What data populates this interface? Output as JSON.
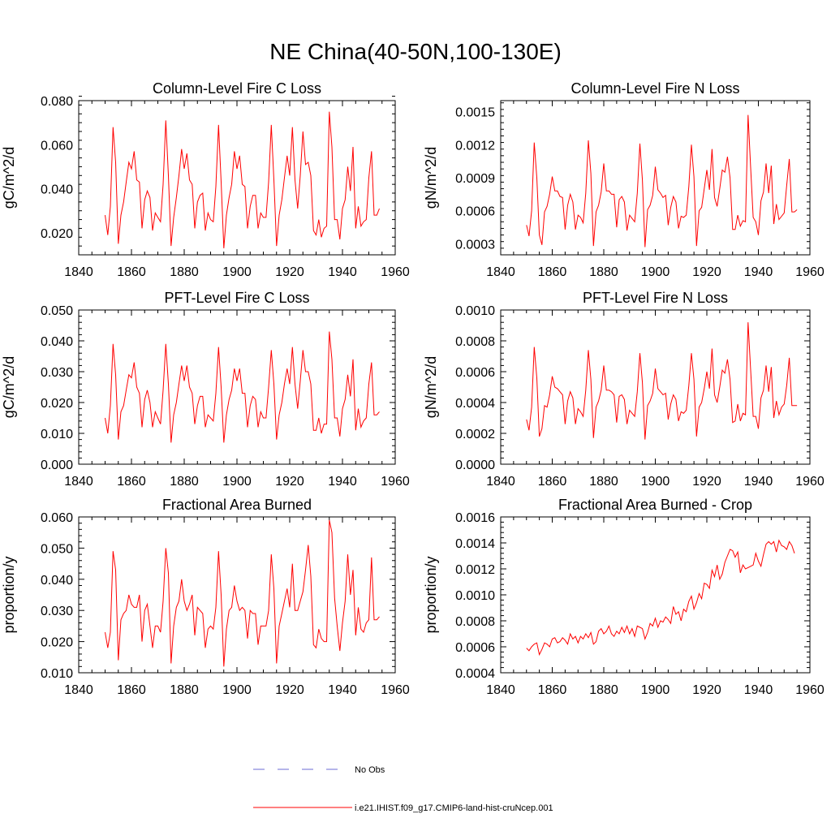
{
  "figure": {
    "title": "NE China(40-50N,100-130E)",
    "legend": [
      {
        "label": "No Obs",
        "color": "#6b6bd6",
        "style": "dashed"
      },
      {
        "label": "i.e21.IHIST.f09_g17.CMIP6-land-hist-cruNcep.001",
        "color": "#ff0000",
        "style": "solid"
      }
    ]
  },
  "chart_data": [
    {
      "type": "line",
      "title": "Column-Level Fire C Loss",
      "ylabel": "gC/m^2/d",
      "xlim": [
        1840,
        1960
      ],
      "ylim": [
        0.01,
        0.08
      ],
      "xticks": [
        1840,
        1860,
        1880,
        1900,
        1920,
        1940,
        1960
      ],
      "yticks": [
        0.02,
        0.04,
        0.06,
        0.08
      ],
      "yticklabels": [
        "0.020",
        "0.040",
        "0.060",
        "0.080"
      ],
      "x_start": 1850,
      "series": [
        {
          "color": "#ff0000",
          "values": [
            0.028,
            0.019,
            0.032,
            0.068,
            0.052,
            0.015,
            0.028,
            0.034,
            0.043,
            0.052,
            0.049,
            0.057,
            0.044,
            0.043,
            0.022,
            0.035,
            0.039,
            0.036,
            0.021,
            0.029,
            0.027,
            0.025,
            0.042,
            0.071,
            0.046,
            0.014,
            0.027,
            0.036,
            0.046,
            0.058,
            0.049,
            0.056,
            0.044,
            0.042,
            0.022,
            0.034,
            0.037,
            0.038,
            0.021,
            0.029,
            0.026,
            0.025,
            0.041,
            0.069,
            0.043,
            0.013,
            0.028,
            0.036,
            0.042,
            0.057,
            0.049,
            0.055,
            0.042,
            0.041,
            0.022,
            0.032,
            0.037,
            0.037,
            0.022,
            0.029,
            0.027,
            0.027,
            0.043,
            0.069,
            0.044,
            0.014,
            0.028,
            0.035,
            0.045,
            0.055,
            0.046,
            0.068,
            0.044,
            0.031,
            0.046,
            0.066,
            0.051,
            0.052,
            0.046,
            0.021,
            0.019,
            0.026,
            0.018,
            0.022,
            0.023,
            0.075,
            0.059,
            0.026,
            0.026,
            0.017,
            0.031,
            0.035,
            0.05,
            0.039,
            0.059,
            0.022,
            0.032,
            0.023,
            0.025,
            0.026,
            0.045,
            0.057,
            0.028,
            0.028,
            0.031
          ]
        }
      ]
    },
    {
      "type": "line",
      "title": "Column-Level Fire N Loss",
      "ylabel": "gN/m^2/d",
      "xlim": [
        1840,
        1960
      ],
      "ylim": [
        0.0002,
        0.0016
      ],
      "xticks": [
        1840,
        1860,
        1880,
        1900,
        1920,
        1940,
        1960
      ],
      "yticks": [
        0.0003,
        0.0006,
        0.0009,
        0.0012,
        0.0015
      ],
      "yticklabels": [
        "0.0003",
        "0.0006",
        "0.0009",
        "0.0012",
        "0.0015"
      ],
      "x_start": 1850,
      "series": [
        {
          "color": "#ff0000",
          "values": [
            0.00047,
            0.00037,
            0.0006,
            0.00122,
            0.0009,
            0.00038,
            0.00029,
            0.00059,
            0.00064,
            0.00075,
            0.00091,
            0.00078,
            0.00078,
            0.00073,
            0.00072,
            0.00043,
            0.00065,
            0.00075,
            0.00068,
            0.00043,
            0.00056,
            0.00054,
            0.00049,
            0.00076,
            0.00124,
            0.00094,
            0.00028,
            0.00059,
            0.00065,
            0.00077,
            0.00103,
            0.00078,
            0.00078,
            0.00075,
            0.00075,
            0.00045,
            0.0007,
            0.00073,
            0.00068,
            0.00042,
            0.00056,
            0.00053,
            0.0005,
            0.00076,
            0.00121,
            0.00088,
            0.00027,
            0.00061,
            0.00065,
            0.00074,
            0.001,
            0.00079,
            0.00076,
            0.00072,
            0.00074,
            0.00047,
            0.00063,
            0.00073,
            0.00068,
            0.00044,
            0.00055,
            0.00054,
            0.00056,
            0.00082,
            0.0012,
            0.00091,
            0.00028,
            0.0006,
            0.00063,
            0.0008,
            0.00097,
            0.00079,
            0.00116,
            0.00072,
            0.00064,
            0.0008,
            0.00097,
            0.00095,
            0.00109,
            0.0009,
            0.00043,
            0.00043,
            0.00056,
            0.00046,
            0.00051,
            0.0005,
            0.00147,
            0.00099,
            0.00054,
            0.0005,
            0.00038,
            0.00069,
            0.00077,
            0.00103,
            0.00076,
            0.00101,
            0.00048,
            0.00066,
            0.00052,
            0.00055,
            0.00058,
            0.00083,
            0.00107,
            0.00059,
            0.00059,
            0.00061
          ]
        }
      ]
    },
    {
      "type": "line",
      "title": "PFT-Level Fire C Loss",
      "ylabel": "gC/m^2/d",
      "xlim": [
        1840,
        1960
      ],
      "ylim": [
        0.0,
        0.05
      ],
      "xticks": [
        1840,
        1860,
        1880,
        1900,
        1920,
        1940,
        1960
      ],
      "yticks": [
        0.0,
        0.01,
        0.02,
        0.03,
        0.04,
        0.05
      ],
      "yticklabels": [
        "0.000",
        "0.010",
        "0.020",
        "0.030",
        "0.040",
        "0.050"
      ],
      "x_start": 1850,
      "series": [
        {
          "color": "#ff0000",
          "values": [
            0.015,
            0.01,
            0.019,
            0.039,
            0.029,
            0.008,
            0.017,
            0.019,
            0.024,
            0.029,
            0.028,
            0.033,
            0.025,
            0.023,
            0.012,
            0.021,
            0.024,
            0.02,
            0.012,
            0.017,
            0.015,
            0.013,
            0.024,
            0.039,
            0.026,
            0.007,
            0.016,
            0.02,
            0.026,
            0.032,
            0.027,
            0.032,
            0.025,
            0.023,
            0.013,
            0.019,
            0.022,
            0.022,
            0.012,
            0.016,
            0.015,
            0.014,
            0.023,
            0.038,
            0.025,
            0.007,
            0.016,
            0.021,
            0.024,
            0.031,
            0.027,
            0.031,
            0.023,
            0.023,
            0.012,
            0.019,
            0.022,
            0.021,
            0.012,
            0.017,
            0.015,
            0.015,
            0.025,
            0.037,
            0.026,
            0.008,
            0.016,
            0.02,
            0.026,
            0.031,
            0.026,
            0.038,
            0.026,
            0.018,
            0.027,
            0.037,
            0.03,
            0.03,
            0.026,
            0.011,
            0.011,
            0.015,
            0.01,
            0.013,
            0.013,
            0.043,
            0.034,
            0.015,
            0.015,
            0.009,
            0.018,
            0.021,
            0.029,
            0.022,
            0.034,
            0.011,
            0.018,
            0.012,
            0.014,
            0.015,
            0.026,
            0.033,
            0.016,
            0.016,
            0.017
          ]
        }
      ]
    },
    {
      "type": "line",
      "title": "PFT-Level Fire N Loss",
      "ylabel": "gN/m^2/d",
      "xlim": [
        1840,
        1960
      ],
      "ylim": [
        0.0,
        0.001
      ],
      "xticks": [
        1840,
        1860,
        1880,
        1900,
        1920,
        1940,
        1960
      ],
      "yticks": [
        0.0,
        0.0002,
        0.0004,
        0.0006,
        0.0008,
        0.001
      ],
      "yticklabels": [
        "0.0000",
        "0.0002",
        "0.0004",
        "0.0006",
        "0.0008",
        "0.0010"
      ],
      "x_start": 1850,
      "series": [
        {
          "color": "#ff0000",
          "values": [
            0.00029,
            0.00022,
            0.00037,
            0.00076,
            0.00056,
            0.00018,
            0.00023,
            0.00038,
            0.00037,
            0.00045,
            0.00057,
            0.0005,
            0.00049,
            0.00047,
            0.00045,
            0.00026,
            0.00041,
            0.00047,
            0.00043,
            0.00026,
            0.00036,
            0.00034,
            0.00031,
            0.00048,
            0.00074,
            0.00055,
            0.00017,
            0.00037,
            0.00041,
            0.00048,
            0.00064,
            0.00048,
            0.00048,
            0.00047,
            0.00045,
            0.00027,
            0.00044,
            0.00045,
            0.00042,
            0.00026,
            0.00035,
            0.00033,
            0.00031,
            0.00047,
            0.00072,
            0.00053,
            0.00016,
            0.00038,
            0.00041,
            0.00046,
            0.00062,
            0.00049,
            0.00047,
            0.00045,
            0.00046,
            0.00029,
            0.00039,
            0.00045,
            0.00042,
            0.00028,
            0.00034,
            0.00033,
            0.00035,
            0.00051,
            0.00072,
            0.00055,
            0.00018,
            0.00037,
            0.0004,
            0.00049,
            0.0006,
            0.00049,
            0.00075,
            0.00045,
            0.0004,
            0.0005,
            0.00061,
            0.00059,
            0.00068,
            0.00055,
            0.00027,
            0.00028,
            0.00039,
            0.00028,
            0.00033,
            0.00032,
            0.00092,
            0.00061,
            0.00031,
            0.00031,
            0.00023,
            0.00043,
            0.00048,
            0.00064,
            0.00047,
            0.00063,
            0.0003,
            0.00041,
            0.00032,
            0.00037,
            0.00039,
            0.00051,
            0.00069,
            0.00038,
            0.00038,
            0.00038
          ]
        }
      ]
    },
    {
      "type": "line",
      "title": "Fractional Area Burned",
      "ylabel": "proportion/y",
      "xlim": [
        1840,
        1960
      ],
      "ylim": [
        0.01,
        0.06
      ],
      "xticks": [
        1840,
        1860,
        1880,
        1900,
        1920,
        1940,
        1960
      ],
      "yticks": [
        0.01,
        0.02,
        0.03,
        0.04,
        0.05,
        0.06
      ],
      "yticklabels": [
        "0.010",
        "0.020",
        "0.030",
        "0.040",
        "0.050",
        "0.060"
      ],
      "x_start": 1850,
      "series": [
        {
          "color": "#ff0000",
          "values": [
            0.023,
            0.018,
            0.023,
            0.049,
            0.043,
            0.014,
            0.027,
            0.029,
            0.03,
            0.035,
            0.032,
            0.031,
            0.031,
            0.035,
            0.02,
            0.03,
            0.032,
            0.025,
            0.018,
            0.025,
            0.025,
            0.023,
            0.033,
            0.05,
            0.042,
            0.013,
            0.025,
            0.031,
            0.033,
            0.04,
            0.033,
            0.03,
            0.032,
            0.035,
            0.022,
            0.031,
            0.03,
            0.029,
            0.018,
            0.024,
            0.025,
            0.024,
            0.031,
            0.049,
            0.035,
            0.012,
            0.024,
            0.03,
            0.031,
            0.038,
            0.033,
            0.03,
            0.031,
            0.03,
            0.021,
            0.03,
            0.029,
            0.029,
            0.019,
            0.025,
            0.025,
            0.025,
            0.03,
            0.048,
            0.037,
            0.013,
            0.025,
            0.029,
            0.033,
            0.037,
            0.031,
            0.045,
            0.03,
            0.03,
            0.033,
            0.036,
            0.043,
            0.051,
            0.041,
            0.019,
            0.018,
            0.024,
            0.021,
            0.02,
            0.02,
            0.059,
            0.055,
            0.034,
            0.025,
            0.017,
            0.026,
            0.033,
            0.048,
            0.035,
            0.043,
            0.022,
            0.031,
            0.024,
            0.023,
            0.026,
            0.027,
            0.047,
            0.027,
            0.027,
            0.028
          ]
        }
      ]
    },
    {
      "type": "line",
      "title": "Fractional Area Burned - Crop",
      "ylabel": "proportion/y",
      "xlim": [
        1840,
        1960
      ],
      "ylim": [
        0.0004,
        0.0016
      ],
      "xticks": [
        1840,
        1860,
        1880,
        1900,
        1920,
        1940,
        1960
      ],
      "yticks": [
        0.0004,
        0.0006,
        0.0008,
        0.001,
        0.0012,
        0.0014,
        0.0016
      ],
      "yticklabels": [
        "0.0004",
        "0.0006",
        "0.0008",
        "0.0010",
        "0.0012",
        "0.0014",
        "0.0016"
      ],
      "x_start": 1850,
      "series": [
        {
          "color": "#ff0000",
          "values": [
            0.00059,
            0.00057,
            0.0006,
            0.00062,
            0.00063,
            0.00054,
            0.00058,
            0.00063,
            0.00062,
            0.0006,
            0.00066,
            0.00067,
            0.00063,
            0.00064,
            0.00067,
            0.00065,
            0.00062,
            0.0007,
            0.00066,
            0.00068,
            0.00063,
            0.00068,
            0.00066,
            0.0007,
            0.00067,
            0.00071,
            0.00062,
            0.00064,
            0.00072,
            0.00074,
            0.0007,
            0.00072,
            0.00076,
            0.0007,
            0.00068,
            0.00072,
            0.0007,
            0.00075,
            0.00071,
            0.00076,
            0.0007,
            0.00074,
            0.00068,
            0.00076,
            0.00075,
            0.00074,
            0.00066,
            0.00071,
            0.00078,
            0.00076,
            0.00082,
            0.00075,
            0.0008,
            0.00079,
            0.00083,
            0.00081,
            0.00078,
            0.00091,
            0.00085,
            0.00087,
            0.0008,
            0.00089,
            0.00087,
            0.00095,
            0.00099,
            0.00089,
            0.00094,
            0.00101,
            0.00097,
            0.00109,
            0.00108,
            0.00105,
            0.00119,
            0.00114,
            0.00123,
            0.00112,
            0.00116,
            0.00125,
            0.0013,
            0.00135,
            0.00134,
            0.00129,
            0.00133,
            0.00117,
            0.00123,
            0.0012,
            0.00121,
            0.00122,
            0.00123,
            0.00132,
            0.00126,
            0.00122,
            0.00131,
            0.00139,
            0.00141,
            0.00139,
            0.00141,
            0.00133,
            0.00142,
            0.00138,
            0.00137,
            0.00135,
            0.00141,
            0.00138,
            0.00132
          ]
        }
      ]
    }
  ]
}
